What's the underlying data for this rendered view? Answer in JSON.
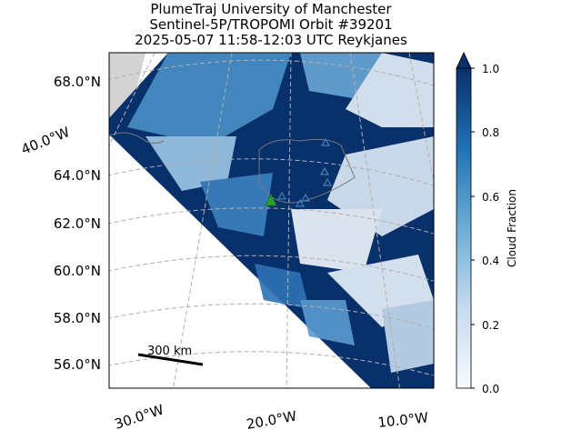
{
  "header": {
    "title": [
      "PlumeTraj    University of Manchester",
      "Sentinel-5P/TROPOMI Orbit #39201",
      "2025-05-07   11:58-12:03 UTC   Reykjanes"
    ]
  },
  "map": {
    "lat_labels": [
      "68.0°N",
      "64.0°N",
      "62.0°N",
      "60.0°N",
      "58.0°N",
      "56.0°N"
    ],
    "lon_labels": [
      "40.0°W",
      "30.0°W",
      "20.0°W",
      "10.0°W"
    ],
    "scale_bar": "300 km"
  },
  "colorbar": {
    "label": "Cloud Fraction",
    "ticks": [
      "0.0",
      "0.2",
      "0.4",
      "0.6",
      "0.8",
      "1.0"
    ]
  }
}
